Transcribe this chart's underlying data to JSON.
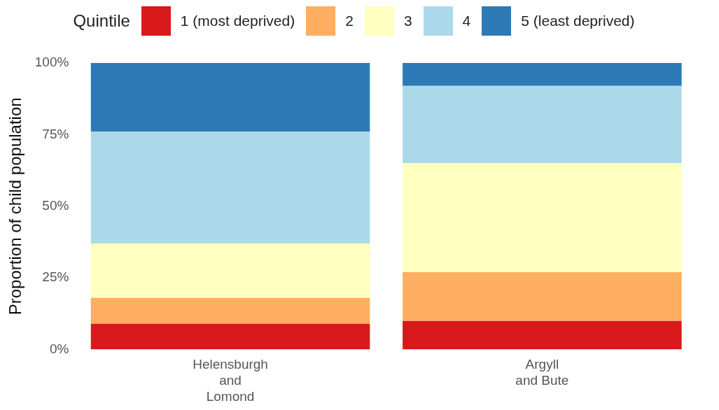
{
  "chart_data": {
    "type": "bar",
    "stacked": true,
    "ylabel": "Proportion of child population",
    "legend_title": "Quintile",
    "legend": "top",
    "categories": [
      "Helensburgh\nand\nLomond",
      "Argyll\nand Bute"
    ],
    "series": [
      {
        "name": "1 (most deprived)",
        "color": "#d7191c",
        "values": [
          9,
          10
        ]
      },
      {
        "name": "2",
        "color": "#fdae61",
        "values": [
          9,
          17
        ]
      },
      {
        "name": "3",
        "color": "#ffffbf",
        "values": [
          19,
          38
        ]
      },
      {
        "name": "4",
        "color": "#abd9e9",
        "values": [
          39,
          27
        ]
      },
      {
        "name": "5 (least deprived)",
        "color": "#2c7bb6",
        "values": [
          24,
          8
        ]
      }
    ],
    "ylim": [
      0,
      100
    ],
    "yticks": [
      {
        "value": 0,
        "label": "0%"
      },
      {
        "value": 25,
        "label": "25%"
      },
      {
        "value": 50,
        "label": "50%"
      },
      {
        "value": 75,
        "label": "75%"
      },
      {
        "value": 100,
        "label": "100%"
      }
    ],
    "grid": false
  }
}
